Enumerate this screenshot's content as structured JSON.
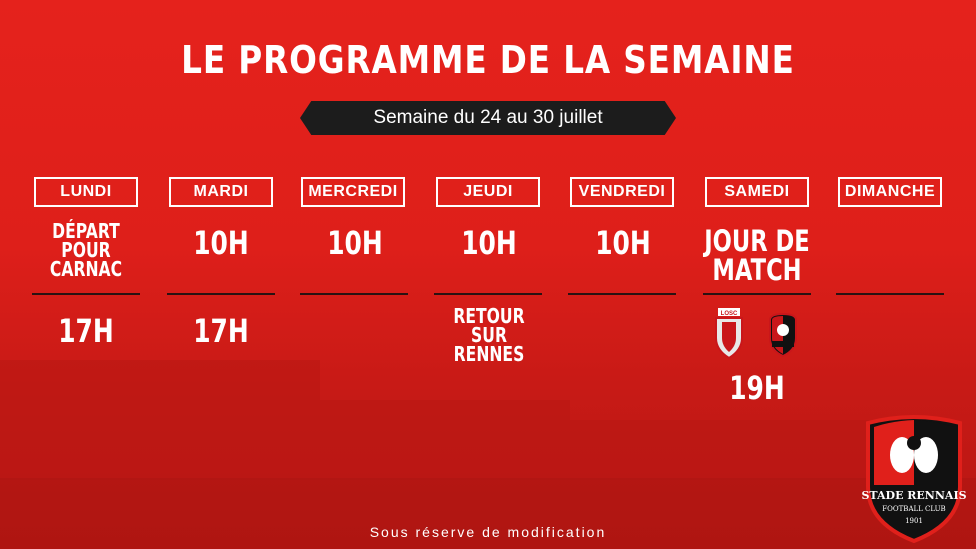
{
  "title": "LE PROGRAMME DE LA SEMAINE",
  "week": "Semaine du 24 au 30 juillet",
  "days": [
    {
      "name": "LUNDI",
      "line1": "DÉPART\nPOUR\nCARNAC",
      "line2": "17H"
    },
    {
      "name": "MARDI",
      "line1": "10H",
      "line2": "17H"
    },
    {
      "name": "MERCREDI",
      "line1": "10H",
      "line2": ""
    },
    {
      "name": "JEUDI",
      "line1": "10H",
      "line2": "RETOUR\nSUR\nRENNES"
    },
    {
      "name": "VENDREDI",
      "line1": "10H",
      "line2": ""
    },
    {
      "name": "SAMEDI",
      "line1": "JOUR DE\nMATCH",
      "line2": "19H"
    },
    {
      "name": "DIMANCHE",
      "line1": "",
      "line2": ""
    }
  ],
  "match": {
    "home_logo_text": "LOSC",
    "away_logo_text": "STADE RENNAIS"
  },
  "footer": "Sous réserve de modification",
  "crest": {
    "name": "STADE RENNAIS",
    "sub": "FOOTBALL CLUB",
    "year": "1901"
  },
  "colors": {
    "background": "#e0201b",
    "band": "#1c1c1c",
    "crest_red": "#e0201b",
    "crest_black": "#111111"
  }
}
